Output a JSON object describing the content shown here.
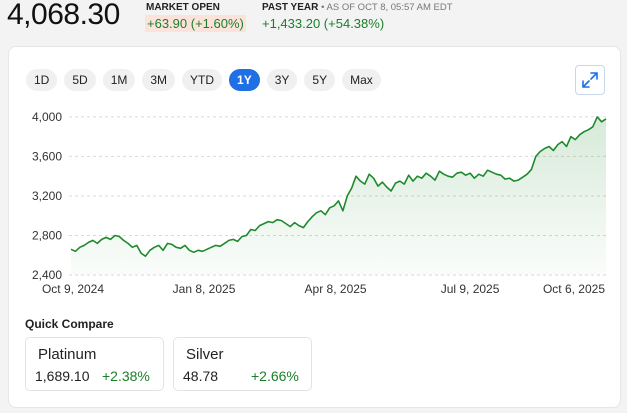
{
  "quote": {
    "price": "4,068.30",
    "market_label": "MARKET OPEN",
    "market_change": "+63.90 (+1.60%)",
    "past_year_label": "PAST YEAR",
    "as_of": "• AS OF OCT 8, 05:57 AM EDT",
    "past_year_change": "+1,433.20 (+54.38%)"
  },
  "ranges": [
    {
      "label": "1D",
      "active": false
    },
    {
      "label": "5D",
      "active": false
    },
    {
      "label": "1M",
      "active": false
    },
    {
      "label": "3M",
      "active": false
    },
    {
      "label": "YTD",
      "active": false
    },
    {
      "label": "1Y",
      "active": true
    },
    {
      "label": "3Y",
      "active": false
    },
    {
      "label": "5Y",
      "active": false
    },
    {
      "label": "Max",
      "active": false
    }
  ],
  "icons": {
    "expand": "expand-arrows-icon"
  },
  "colors": {
    "line": "#1e8a2c",
    "accent": "#1f6fe5",
    "up": "#1b7f2a"
  },
  "chart_data": {
    "type": "area",
    "y_ticks": [
      "4,000",
      "3,600",
      "3,200",
      "2,800",
      "2,400"
    ],
    "y_tick_values": [
      4000,
      3600,
      3200,
      2800,
      2400
    ],
    "x_ticks": [
      "Oct 9, 2024",
      "Jan 8, 2025",
      "Apr 8, 2025",
      "Jul 9, 2025",
      "Oct 6, 2025"
    ],
    "ylim": [
      2400,
      4100
    ],
    "grid": true,
    "x": [
      0,
      3,
      6,
      9,
      12,
      15,
      18,
      21,
      24,
      27,
      30,
      33,
      36,
      39,
      42,
      45,
      48,
      51,
      54,
      57,
      60,
      63,
      66,
      69,
      72,
      75,
      78,
      81,
      84,
      87,
      90,
      93,
      96,
      99,
      102,
      105,
      108,
      111,
      114,
      117,
      120,
      123,
      126,
      129,
      132,
      135,
      138,
      141,
      144,
      147,
      150,
      153,
      156,
      159,
      162,
      165,
      168,
      171,
      174,
      177,
      180,
      183,
      186,
      189,
      192,
      195,
      198,
      201,
      204,
      207,
      210,
      213,
      216,
      219,
      222,
      225,
      228,
      231,
      234,
      237,
      240,
      243,
      246,
      249,
      252,
      255,
      258,
      261,
      264,
      267,
      270,
      273,
      276,
      279,
      282,
      285,
      288,
      291,
      294,
      297,
      300,
      303,
      306,
      309,
      312,
      315,
      318,
      321,
      324,
      327,
      330,
      333,
      336,
      339,
      342,
      345,
      348,
      351,
      354,
      357,
      360,
      363,
      366
    ],
    "values": [
      2660,
      2640,
      2680,
      2700,
      2730,
      2750,
      2720,
      2760,
      2780,
      2760,
      2800,
      2790,
      2750,
      2720,
      2680,
      2700,
      2620,
      2590,
      2650,
      2680,
      2700,
      2650,
      2720,
      2710,
      2680,
      2670,
      2700,
      2650,
      2630,
      2650,
      2640,
      2660,
      2680,
      2700,
      2690,
      2720,
      2750,
      2760,
      2740,
      2790,
      2800,
      2860,
      2850,
      2900,
      2920,
      2940,
      2930,
      2960,
      2950,
      2920,
      2890,
      2930,
      2900,
      2880,
      2940,
      2990,
      3030,
      3050,
      3010,
      3080,
      3100,
      3150,
      3050,
      3200,
      3280,
      3400,
      3350,
      3320,
      3420,
      3380,
      3300,
      3340,
      3290,
      3250,
      3330,
      3350,
      3320,
      3410,
      3350,
      3400,
      3380,
      3430,
      3400,
      3360,
      3450,
      3420,
      3400,
      3390,
      3430,
      3440,
      3410,
      3430,
      3380,
      3420,
      3400,
      3460,
      3440,
      3420,
      3410,
      3370,
      3380,
      3350,
      3360,
      3390,
      3420,
      3470,
      3600,
      3650,
      3680,
      3700,
      3660,
      3720,
      3750,
      3700,
      3800,
      3770,
      3820,
      3850,
      3870,
      3900,
      4000,
      3950,
      3980
    ],
    "xlim": [
      0,
      366
    ]
  },
  "quick_compare": {
    "title": "Quick Compare",
    "items": [
      {
        "name": "Platinum",
        "value": "1,689.10",
        "change": "+2.38%"
      },
      {
        "name": "Silver",
        "value": "48.78",
        "change": "+2.66%"
      }
    ]
  }
}
